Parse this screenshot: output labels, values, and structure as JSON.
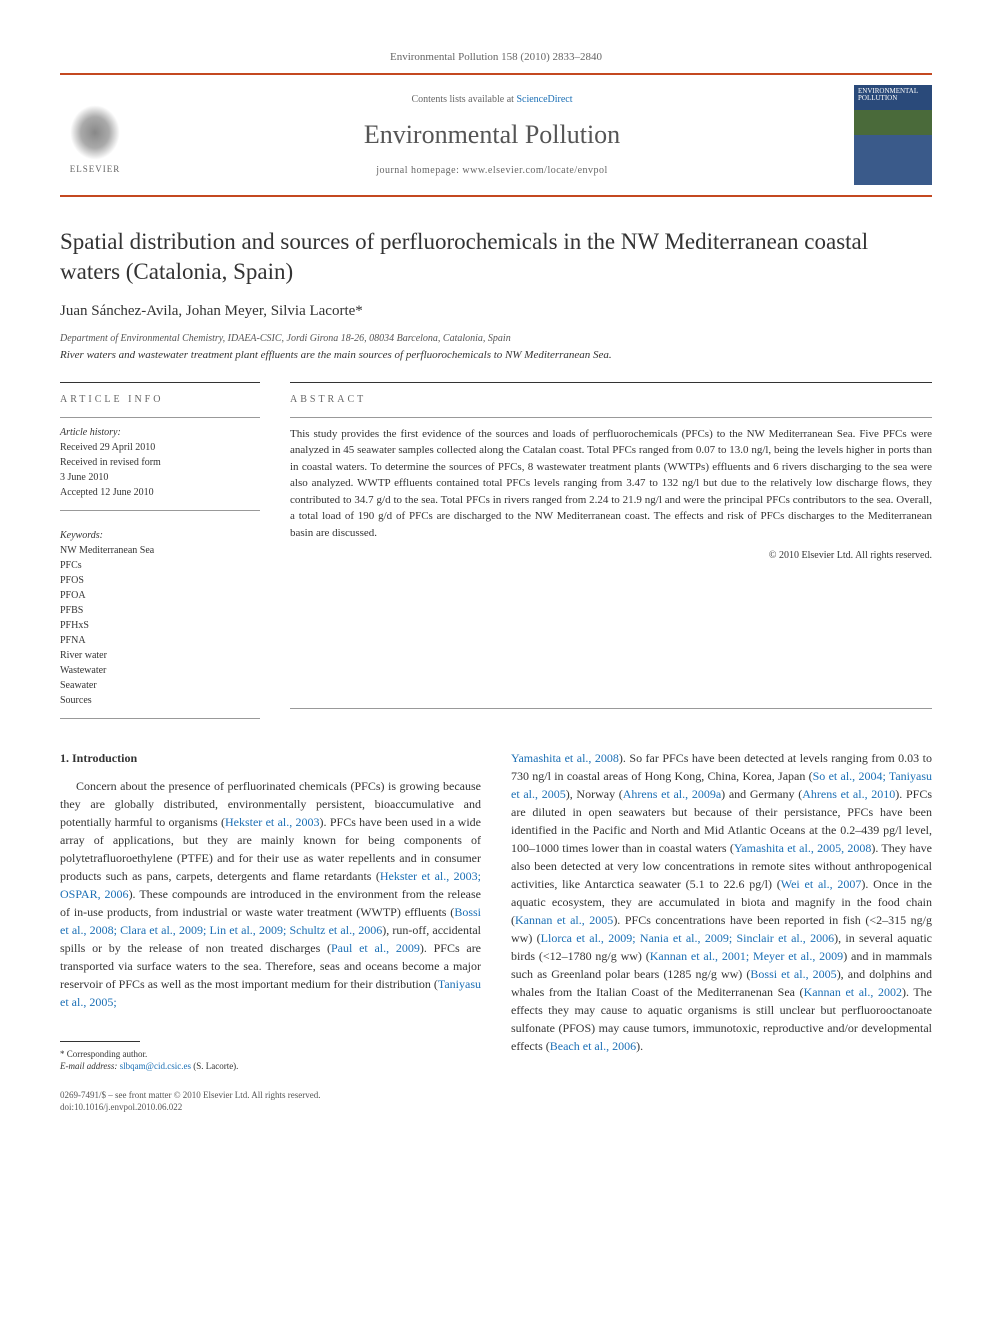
{
  "journal_ref": "Environmental Pollution 158 (2010) 2833–2840",
  "header": {
    "contents_prefix": "Contents lists available at ",
    "contents_link": "ScienceDirect",
    "journal_title": "Environmental Pollution",
    "homepage_prefix": "journal homepage: ",
    "homepage_url": "www.elsevier.com/locate/envpol",
    "publisher": "ELSEVIER",
    "cover_label_line1": "ENVIRONMENTAL",
    "cover_label_line2": "POLLUTION"
  },
  "article": {
    "title": "Spatial distribution and sources of perfluorochemicals in the NW Mediterranean coastal waters (Catalonia, Spain)",
    "authors": "Juan Sánchez-Avila, Johan Meyer, Silvia Lacorte*",
    "affiliation": "Department of Environmental Chemistry, IDAEA-CSIC, Jordi Girona 18-26, 08034 Barcelona, Catalonia, Spain",
    "tagline": "River waters and wastewater treatment plant effluents are the main sources of perfluorochemicals to NW Mediterranean Sea."
  },
  "article_info": {
    "label": "ARTICLE INFO",
    "history_label": "Article history:",
    "history": [
      "Received 29 April 2010",
      "Received in revised form",
      "3 June 2010",
      "Accepted 12 June 2010"
    ],
    "keywords_label": "Keywords:",
    "keywords": [
      "NW Mediterranean Sea",
      "PFCs",
      "PFOS",
      "PFOA",
      "PFBS",
      "PFHxS",
      "PFNA",
      "River water",
      "Wastewater",
      "Seawater",
      "Sources"
    ]
  },
  "abstract": {
    "label": "ABSTRACT",
    "text": "This study provides the first evidence of the sources and loads of perfluorochemicals (PFCs) to the NW Mediterranean Sea. Five PFCs were analyzed in 45 seawater samples collected along the Catalan coast. Total PFCs ranged from 0.07 to 13.0 ng/l, being the levels higher in ports than in coastal waters. To determine the sources of PFCs, 8 wastewater treatment plants (WWTPs) effluents and 6 rivers discharging to the sea were also analyzed. WWTP effluents contained total PFCs levels ranging from 3.47 to 132 ng/l but due to the relatively low discharge flows, they contributed to 34.7 g/d to the sea. Total PFCs in rivers ranged from 2.24 to 21.9 ng/l and were the principal PFCs contributors to the sea. Overall, a total load of 190 g/d of PFCs are discharged to the NW Mediterranean coast. The effects and risk of PFCs discharges to the Mediterranean basin are discussed.",
    "copyright": "© 2010 Elsevier Ltd. All rights reserved."
  },
  "body": {
    "section_number": "1.",
    "section_title": "Introduction",
    "col1_html": "Concern about the presence of perfluorinated chemicals (PFCs) is growing because they are globally distributed, environmentally persistent, bioaccumulative and potentially harmful to organisms (<a>Hekster et al., 2003</a>). PFCs have been used in a wide array of applications, but they are mainly known for being components of polytetrafluoroethylene (PTFE) and for their use as water repellents and in consumer products such as pans, carpets, detergents and flame retardants (<a>Hekster et al., 2003; OSPAR, 2006</a>). These compounds are introduced in the environment from the release of in-use products, from industrial or waste water treatment (WWTP) effluents (<a>Bossi et al., 2008; Clara et al., 2009; Lin et al., 2009; Schultz et al., 2006</a>), run-off, accidental spills or by the release of non treated discharges (<a>Paul et al., 2009</a>). PFCs are transported via surface waters to the sea. Therefore, seas and oceans become a major reservoir of PFCs as well as the most important medium for their distribution (<a>Taniyasu et al., 2005;</a>",
    "col2_html": "<a>Yamashita et al., 2008</a>). So far PFCs have been detected at levels ranging from 0.03 to 730 ng/l in coastal areas of Hong Kong, China, Korea, Japan (<a>So et al., 2004; Taniyasu et al., 2005</a>), Norway (<a>Ahrens et al., 2009a</a>) and Germany (<a>Ahrens et al., 2010</a>). PFCs are diluted in open seawaters but because of their persistance, PFCs have been identified in the Pacific and North and Mid Atlantic Oceans at the 0.2–439 pg/l level, 100–1000 times lower than in coastal waters (<a>Yamashita et al., 2005, 2008</a>). They have also been detected at very low concentrations in remote sites without anthropogenical activities, like Antarctica seawater (5.1 to 22.6 pg/l) (<a>Wei et al., 2007</a>). Once in the aquatic ecosystem, they are accumulated in biota and magnify in the food chain (<a>Kannan et al., 2005</a>). PFCs concentrations have been reported in fish (&lt;2–315 ng/g ww) (<a>Llorca et al., 2009; Nania et al., 2009; Sinclair et al., 2006</a>), in several aquatic birds (&lt;12–1780 ng/g ww) (<a>Kannan et al., 2001; Meyer et al., 2009</a>) and in mammals such as Greenland polar bears (1285 ng/g ww) (<a>Bossi et al., 2005</a>), and dolphins and whales from the Italian Coast of the Mediterranenan Sea (<a>Kannan et al., 2002</a>). The effects they may cause to aquatic organisms is still unclear but perfluorooctanoate sulfonate (PFOS) may cause tumors, immunotoxic, reproductive and/or developmental effects (<a>Beach et al., 2006</a>)."
  },
  "footnote": {
    "corr_label": "* Corresponding author.",
    "email_label": "E-mail address:",
    "email": "slbqam@cid.csic.es",
    "email_name": "(S. Lacorte)."
  },
  "bottom": {
    "line1": "0269-7491/$ – see front matter © 2010 Elsevier Ltd. All rights reserved.",
    "line2": "doi:10.1016/j.envpol.2010.06.022"
  },
  "colors": {
    "accent": "#c44820",
    "link": "#1b6fb5",
    "text": "#333333",
    "muted": "#666666"
  }
}
